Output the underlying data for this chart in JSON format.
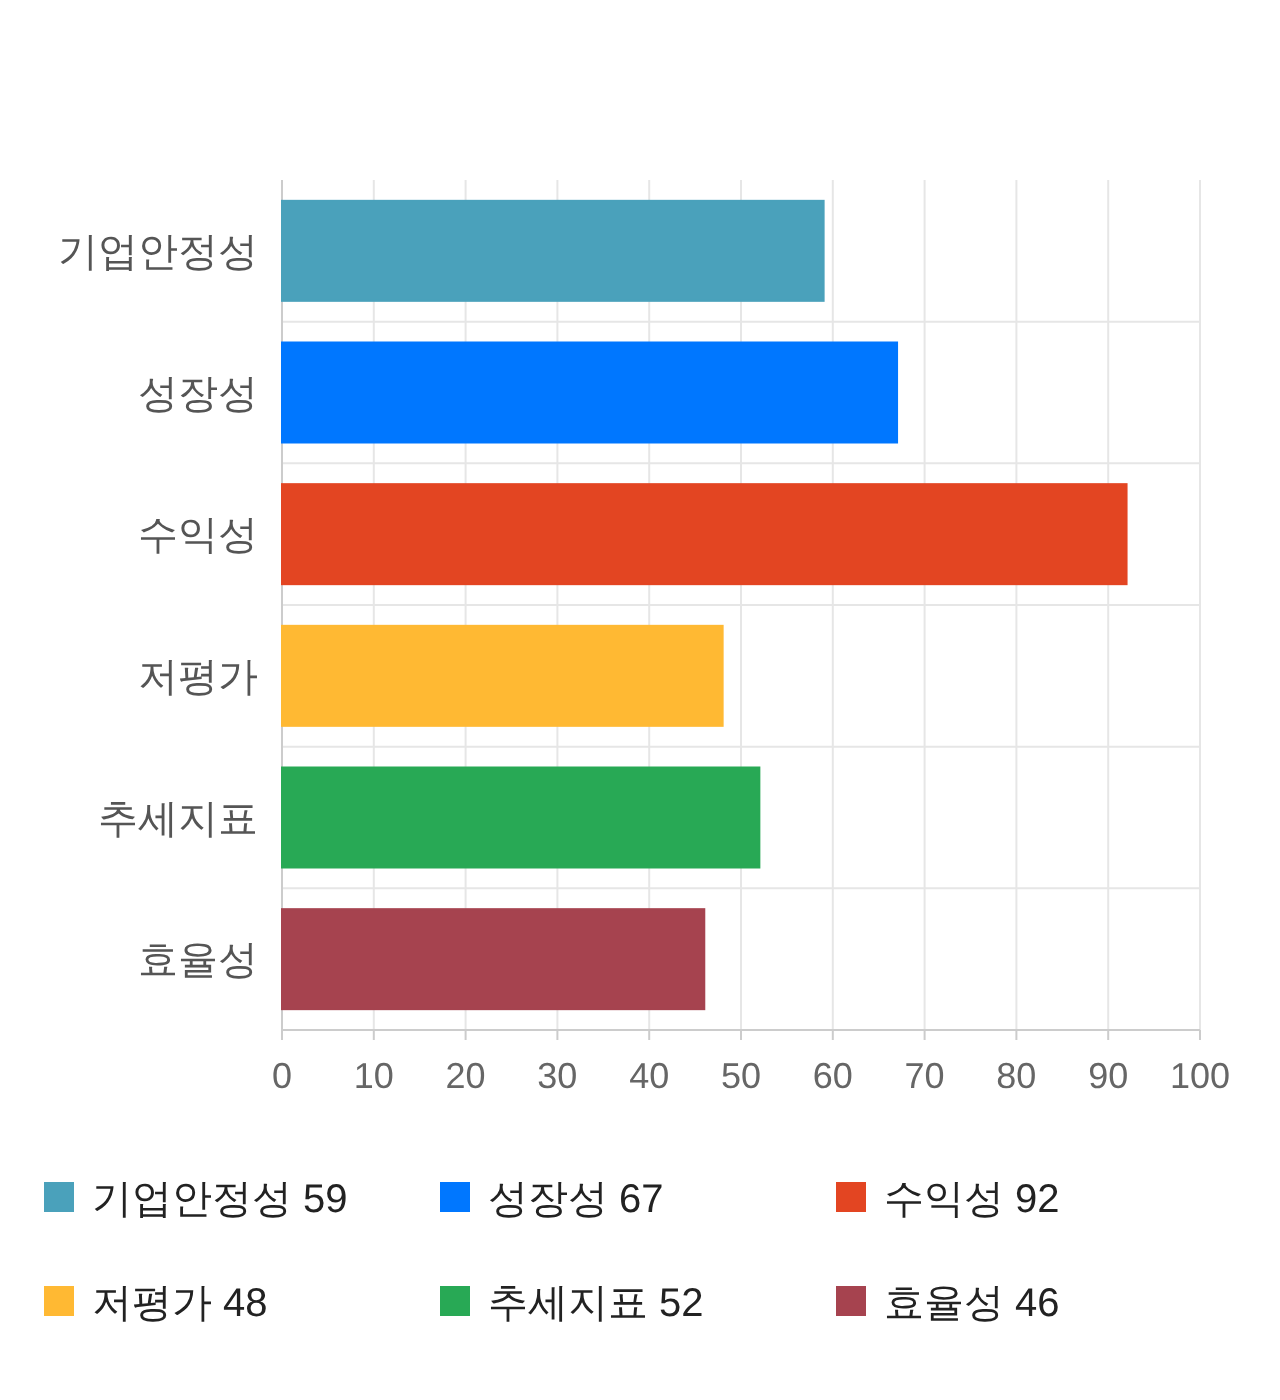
{
  "chart_data": {
    "type": "bar",
    "orientation": "horizontal",
    "stacked": true,
    "categories": [
      "기업안정성",
      "성장성",
      "수익성",
      "저평가",
      "추세지표",
      "효율성"
    ],
    "series": [
      {
        "name": "기업안정성 59",
        "color": "#4aa1bb",
        "values": [
          59,
          null,
          null,
          null,
          null,
          null
        ]
      },
      {
        "name": "성장성 67",
        "color": "#0077ff",
        "values": [
          null,
          67,
          null,
          null,
          null,
          null
        ]
      },
      {
        "name": "수익성 92",
        "color": "#e34522",
        "values": [
          null,
          null,
          92,
          null,
          null,
          null
        ]
      },
      {
        "name": "저평가 48",
        "color": "#ffb933",
        "values": [
          null,
          null,
          null,
          48,
          null,
          null
        ]
      },
      {
        "name": "추세지표 52",
        "color": "#28a955",
        "values": [
          null,
          null,
          null,
          null,
          52,
          null
        ]
      },
      {
        "name": "효율성 46",
        "color": "#a6434f",
        "values": [
          null,
          null,
          null,
          null,
          null,
          46
        ]
      }
    ],
    "xlim": [
      0,
      100
    ],
    "xticks": [
      0,
      10,
      20,
      30,
      40,
      50,
      60,
      70,
      80,
      90,
      100
    ],
    "grid": true,
    "legend": "bottom"
  }
}
